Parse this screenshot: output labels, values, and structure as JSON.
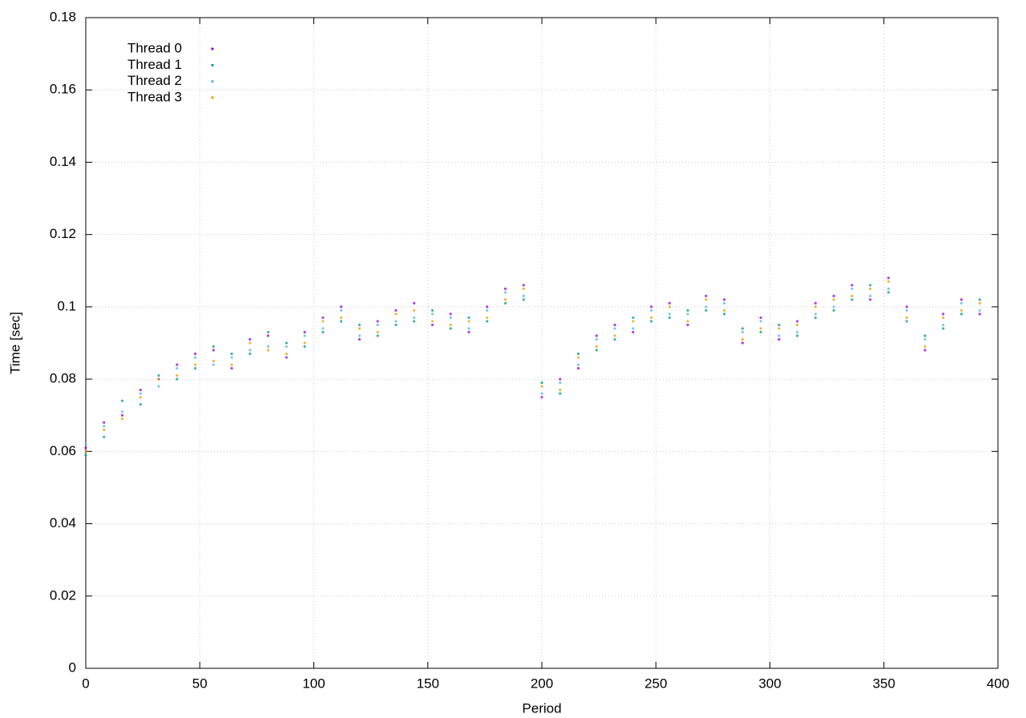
{
  "chart_data": {
    "type": "scatter",
    "x_label": "Period",
    "y_label": "Time [sec]",
    "xlim": [
      0,
      400
    ],
    "xticks": [
      0,
      50,
      100,
      150,
      200,
      250,
      300,
      350,
      400
    ],
    "ylim": [
      0,
      0.18
    ],
    "yticks": [
      0,
      0.02,
      0.04,
      0.06,
      0.08,
      0.1,
      0.12,
      0.14,
      0.16,
      0.18
    ],
    "grid": true,
    "legend": "top-left",
    "x": [
      0,
      8,
      16,
      24,
      32,
      40,
      48,
      56,
      64,
      72,
      80,
      88,
      96,
      104,
      112,
      120,
      128,
      136,
      144,
      152,
      160,
      168,
      176,
      184,
      192,
      200,
      208,
      216,
      224,
      232,
      240,
      248,
      256,
      264,
      272,
      280,
      288,
      296,
      304,
      312,
      320,
      328,
      336,
      344,
      352,
      360,
      368,
      376,
      384,
      392
    ],
    "series": [
      {
        "name": "Thread 0",
        "color": "#9400d3",
        "values": [
          0.061,
          0.068,
          0.07,
          0.077,
          0.08,
          0.084,
          0.087,
          0.088,
          0.083,
          0.091,
          0.092,
          0.086,
          0.093,
          0.097,
          0.1,
          0.091,
          0.096,
          0.099,
          0.101,
          0.095,
          0.098,
          0.093,
          0.1,
          0.105,
          0.106,
          0.075,
          0.08,
          0.083,
          0.092,
          0.095,
          0.093,
          0.1,
          0.101,
          0.095,
          0.103,
          0.102,
          0.09,
          0.097,
          0.091,
          0.096,
          0.101,
          0.103,
          0.106,
          0.102,
          0.108,
          0.1,
          0.088,
          0.098,
          0.102,
          0.098
        ]
      },
      {
        "name": "Thread 1",
        "color": "#009e73",
        "values": [
          0.059,
          0.064,
          0.074,
          0.073,
          0.081,
          0.08,
          0.083,
          0.089,
          0.087,
          0.087,
          0.093,
          0.09,
          0.089,
          0.093,
          0.096,
          0.095,
          0.092,
          0.095,
          0.096,
          0.099,
          0.094,
          0.097,
          0.096,
          0.101,
          0.102,
          0.079,
          0.076,
          0.087,
          0.088,
          0.091,
          0.097,
          0.096,
          0.097,
          0.099,
          0.099,
          0.098,
          0.094,
          0.093,
          0.095,
          0.092,
          0.097,
          0.099,
          0.102,
          0.106,
          0.104,
          0.096,
          0.092,
          0.094,
          0.098,
          0.102
        ]
      },
      {
        "name": "Thread 2",
        "color": "#56b4e9",
        "values": [
          0.062,
          0.067,
          0.071,
          0.076,
          0.078,
          0.083,
          0.086,
          0.084,
          0.086,
          0.088,
          0.089,
          0.089,
          0.092,
          0.094,
          0.099,
          0.092,
          0.095,
          0.096,
          0.097,
          0.098,
          0.097,
          0.094,
          0.099,
          0.104,
          0.103,
          0.076,
          0.079,
          0.084,
          0.091,
          0.094,
          0.094,
          0.099,
          0.098,
          0.098,
          0.1,
          0.101,
          0.093,
          0.096,
          0.092,
          0.093,
          0.098,
          0.1,
          0.105,
          0.103,
          0.105,
          0.099,
          0.091,
          0.095,
          0.101,
          0.099
        ]
      },
      {
        "name": "Thread 3",
        "color": "#e69f00",
        "values": [
          0.06,
          0.066,
          0.069,
          0.075,
          0.08,
          0.081,
          0.084,
          0.085,
          0.084,
          0.09,
          0.088,
          0.087,
          0.09,
          0.096,
          0.097,
          0.094,
          0.093,
          0.098,
          0.099,
          0.096,
          0.095,
          0.096,
          0.097,
          0.102,
          0.105,
          0.078,
          0.077,
          0.086,
          0.089,
          0.092,
          0.096,
          0.097,
          0.1,
          0.096,
          0.102,
          0.099,
          0.091,
          0.094,
          0.094,
          0.095,
          0.1,
          0.102,
          0.103,
          0.105,
          0.107,
          0.097,
          0.089,
          0.097,
          0.099,
          0.101
        ]
      }
    ]
  }
}
